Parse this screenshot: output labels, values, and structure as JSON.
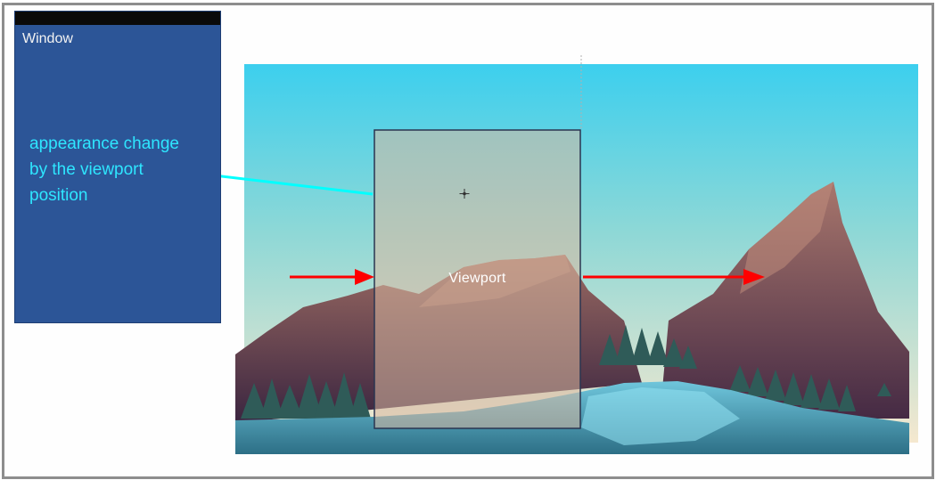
{
  "window": {
    "title": "Window",
    "background_color": "#2c5597"
  },
  "annotation": {
    "text": "appearance change\nby the viewport\nposition",
    "color": "#2ee6ff"
  },
  "viewport": {
    "label": "Viewport"
  },
  "arrows": {
    "pointer_color": "#00ffff",
    "motion_color": "#ff0000"
  },
  "icons": {
    "drag_cursor": "move-cursor-icon"
  }
}
